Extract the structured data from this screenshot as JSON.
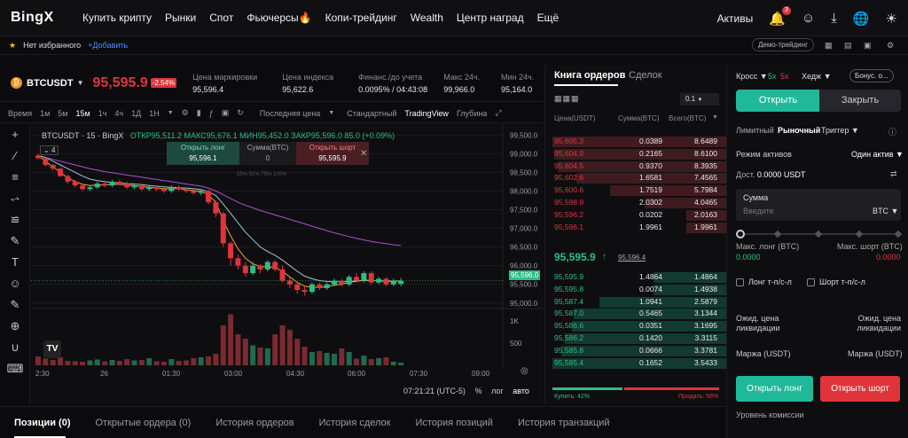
{
  "nav": {
    "logo": "BingX",
    "links": [
      "Купить крипту",
      "Рынки",
      "Спот",
      "Фьючерсы🔥",
      "Копи-трейдинг",
      "Wealth",
      "Центр наград",
      "Ещё"
    ],
    "assets": "Активы",
    "notif_count": "3"
  },
  "fav": {
    "none": "Нет избранного",
    "add": "+Добавить",
    "demo": "Демо-трейдинг"
  },
  "ticker": {
    "symbol": "BTCUSDT",
    "price": "95,595.9",
    "change": "-2.54%",
    "stats": [
      {
        "label": "Цена маркировки",
        "value": "95,596.4"
      },
      {
        "label": "Цена индекса",
        "value": "95,622.6"
      },
      {
        "label": "Финанс./до учета",
        "value": "0.0095% / 04:43:08"
      },
      {
        "label": "Макс 24ч.",
        "value": "99,966.0"
      },
      {
        "label": "Мин 24ч.",
        "value": "95,164.0"
      }
    ]
  },
  "toolbar": {
    "time": "Время",
    "intervals": [
      "1м",
      "5м",
      "15м",
      "1ч",
      "4ч",
      "1Д",
      "1Н"
    ],
    "active": "15м",
    "last_price": "Последняя цена",
    "standard": "Стандартный",
    "tradingview": "TradingView",
    "depth": "Глубина"
  },
  "chart": {
    "legend": "BTCUSDT · 15 · BingX",
    "ohlc": "ОТКР95,511.2 МАКС95,676.1 МИН95,452.0 ЗАКР95,596.0 85.0 (+0.09%)",
    "open_long": "Открыть лонг",
    "open_short": "Открыть шорт",
    "long_price": "95,596.1",
    "short_price": "95,595.9",
    "size_label": "Сумма(BTC)",
    "size_val": "0",
    "pct": "25% 50% 75% 100%",
    "indicator_count": "4",
    "price_ticks": [
      "99,500.0",
      "99,000.0",
      "98,500.0",
      "98,000.0",
      "97,500.0",
      "97,000.0",
      "96,500.0",
      "96,000.0",
      "95,500.0",
      "95,000.0"
    ],
    "vol_ticks": [
      "1K",
      "500"
    ],
    "time_ticks": [
      "2:30",
      "26",
      "01:30",
      "03:00",
      "04:30",
      "06:00",
      "07:30",
      "09:00"
    ],
    "current_price": "95,596.0",
    "clock": "07:21:21 (UTC-5)",
    "pct_btn": "%",
    "log": "лог",
    "auto": "авто"
  },
  "chart_data": {
    "type": "candlestick",
    "interval": "15м",
    "ylim": [
      94900,
      99650
    ],
    "candles": [
      [
        98950,
        98880,
        99000,
        98850
      ],
      [
        98880,
        98700,
        98920,
        98650
      ],
      [
        98700,
        98600,
        98720,
        98550
      ],
      [
        98600,
        98400,
        98640,
        98380
      ],
      [
        98400,
        98250,
        98450,
        98200
      ],
      [
        98250,
        98150,
        98300,
        98100
      ],
      [
        98150,
        98050,
        98200,
        98000
      ],
      [
        98050,
        98100,
        98150,
        98000
      ],
      [
        98100,
        98200,
        98250,
        98050
      ],
      [
        98200,
        98150,
        98250,
        98100
      ],
      [
        98150,
        98250,
        98300,
        98100
      ],
      [
        98250,
        98200,
        98300,
        98150
      ],
      [
        98200,
        98100,
        98250,
        98050
      ],
      [
        98100,
        98150,
        98200,
        98050
      ],
      [
        98150,
        98050,
        98200,
        98000
      ],
      [
        98050,
        98100,
        98150,
        98000
      ],
      [
        98100,
        98050,
        98150,
        98000
      ],
      [
        98050,
        98000,
        98100,
        97950
      ],
      [
        98000,
        98100,
        98150,
        97950
      ],
      [
        98100,
        98050,
        98150,
        98000
      ],
      [
        98050,
        98000,
        98100,
        97950
      ],
      [
        98000,
        97950,
        98050,
        97900
      ],
      [
        97950,
        98000,
        98050,
        97900
      ],
      [
        98000,
        97700,
        98050,
        97650
      ],
      [
        97700,
        97400,
        97750,
        97300
      ],
      [
        97400,
        96600,
        97450,
        96500
      ],
      [
        96600,
        96200,
        96650,
        96000
      ],
      [
        96200,
        96000,
        96300,
        95900
      ],
      [
        96000,
        95800,
        96100,
        95700
      ],
      [
        95800,
        96000,
        96100,
        95750
      ],
      [
        96000,
        95900,
        96050,
        95800
      ],
      [
        95900,
        96100,
        96150,
        95850
      ],
      [
        96100,
        95900,
        96150,
        95850
      ],
      [
        95900,
        95600,
        96000,
        95550
      ],
      [
        95600,
        95500,
        95700,
        95400
      ],
      [
        95500,
        95350,
        95550,
        95250
      ],
      [
        95350,
        95300,
        95450,
        95200
      ],
      [
        95300,
        95500,
        95550,
        95250
      ],
      [
        95500,
        95400,
        95550,
        95350
      ],
      [
        95400,
        95500,
        95550,
        95350
      ],
      [
        95500,
        95600,
        95650,
        95450
      ],
      [
        95600,
        95500,
        95650,
        95450
      ],
      [
        95500,
        95700,
        95750,
        95450
      ],
      [
        95700,
        95600,
        95800,
        95550
      ],
      [
        95600,
        95800,
        95850,
        95550
      ],
      [
        95800,
        95550,
        95850,
        95500
      ],
      [
        95550,
        95650,
        95700,
        95500
      ],
      [
        95650,
        95500,
        95700,
        95450
      ],
      [
        95500,
        95600,
        95650,
        95450
      ],
      [
        95511.2,
        95596,
        95676.1,
        95452
      ]
    ],
    "volumes": [
      200,
      150,
      120,
      180,
      100,
      90,
      80,
      110,
      130,
      90,
      120,
      100,
      140,
      110,
      120,
      160,
      90,
      80,
      140,
      100,
      110,
      160,
      180,
      200,
      260,
      900,
      1150,
      700,
      600,
      450,
      400,
      380,
      700,
      900,
      800,
      600,
      420,
      300,
      320,
      280,
      260,
      380,
      300,
      150,
      220,
      140,
      160,
      180,
      80,
      60
    ],
    "ma_fast": [
      98950,
      98800,
      98650,
      98500,
      98350,
      98250,
      98180,
      98150,
      98160,
      98160,
      98180,
      98180,
      98160,
      98150,
      98120,
      98100,
      98080,
      98060,
      98060,
      98060,
      98040,
      98010,
      98000,
      97900,
      97700,
      97200,
      96800,
      96450,
      96200,
      96050,
      95980,
      95970,
      95950,
      95850,
      95700,
      95550,
      95450,
      95420,
      95420,
      95440,
      95480,
      95500,
      95560,
      95580,
      95620,
      95600,
      95600,
      95580,
      95580,
      95590
    ],
    "ma_mid": [
      98950,
      98900,
      98800,
      98700,
      98600,
      98500,
      98400,
      98320,
      98280,
      98250,
      98230,
      98220,
      98200,
      98190,
      98170,
      98150,
      98130,
      98110,
      98100,
      98090,
      98080,
      98060,
      98040,
      97980,
      97880,
      97650,
      97400,
      97150,
      96900,
      96700,
      96500,
      96380,
      96280,
      96150,
      96000,
      95850,
      95720,
      95650,
      95600,
      95580,
      95570,
      95570,
      95580,
      95590,
      95600,
      95600,
      95600,
      95590,
      95590,
      95590
    ],
    "ma_slow": [
      98950,
      98900,
      98850,
      98800,
      98750,
      98700,
      98650,
      98600,
      98560,
      98520,
      98490,
      98460,
      98430,
      98400,
      98370,
      98340,
      98310,
      98280,
      98250,
      98220,
      98190,
      98160,
      98130,
      98080,
      98000,
      97900,
      97800,
      97700,
      97620,
      97550,
      97480,
      97420,
      97360,
      97300,
      97240,
      97180,
      97120,
      97060,
      97000,
      96940,
      96880,
      96830,
      96780,
      96730,
      96690,
      96650,
      96620,
      96590,
      96560,
      96540
    ]
  },
  "orderbook": {
    "tab_book": "Книга ордеров",
    "tab_trades": "Сделок",
    "precision": "0.1",
    "col_price": "Цена(USDT)",
    "col_size": "Сумма(BTC)",
    "col_total": "Всего(BTC)",
    "asks": [
      [
        "95,605.3",
        "0.0389",
        "8.6489"
      ],
      [
        "95,604.9",
        "0.2165",
        "8.6100"
      ],
      [
        "95,604.5",
        "0.9370",
        "8.3935"
      ],
      [
        "95,602.6",
        "1.6581",
        "7.4565"
      ],
      [
        "95,600.6",
        "1.7519",
        "5.7984"
      ],
      [
        "95,598.9",
        "2.0302",
        "4.0465"
      ],
      [
        "95,596.2",
        "0.0202",
        "2.0163"
      ],
      [
        "95,596.1",
        "1.9961",
        "1.9961"
      ]
    ],
    "ask_depth": [
      1.0,
      0.99,
      0.97,
      0.86,
      0.67,
      0.47,
      0.23,
      0.23
    ],
    "mid_price": "95,595.9",
    "mid_mark": "95,596.4",
    "bids": [
      [
        "95,595.9",
        "1.4864",
        "1.4864"
      ],
      [
        "95,595.8",
        "0.0074",
        "1.4938"
      ],
      [
        "95,587.4",
        "1.0941",
        "2.5879"
      ],
      [
        "95,587.0",
        "0.5465",
        "3.1344"
      ],
      [
        "95,586.6",
        "0.0351",
        "3.1695"
      ],
      [
        "95,586.2",
        "0.1420",
        "3.3115"
      ],
      [
        "95,585.8",
        "0.0666",
        "3.3781"
      ],
      [
        "95,585.4",
        "0.1652",
        "3.5433"
      ]
    ],
    "bid_depth": [
      0.42,
      0.42,
      0.73,
      0.88,
      0.89,
      0.93,
      0.95,
      1.0
    ],
    "buy_pct_label": "Купить: 42%",
    "sell_pct_label": "Продать: 58%",
    "buy_pct": 42
  },
  "form": {
    "cross": "Кросс",
    "lev_long": "5x",
    "lev_short": "5x",
    "hedge": "Хедж",
    "bonus": "Бонус. о...",
    "open": "Открыть",
    "close": "Закрыть",
    "tabs": [
      "Лимитный",
      "Рыночный",
      "Триггер"
    ],
    "mode_label": "Режим активов",
    "mode_val": "Один актив",
    "avail_label": "Дост.",
    "avail_val": "0.0000",
    "avail_unit": "USDT",
    "amount_label": "Сумма",
    "amount_placeholder": "Введите",
    "amount_unit": "BTC",
    "slider_pct": 0,
    "max_long_label": "Макс. лонг (BTC)",
    "max_long_val": "0.0000",
    "max_short_label": "Макс. шорт (BTC)",
    "max_short_val": "0.0000",
    "tpsl_long": "Лонг т-п/с-л",
    "tpsl_short": "Шорт т-п/с-л",
    "liq_long": "Ожид. цена ликвидации",
    "liq_short": "Ожид. цена ликвидации",
    "margin_long": "Маржа (USDT)",
    "margin_short": "Маржа (USDT)",
    "btn_long": "Открыть лонг",
    "btn_short": "Открыть шорт",
    "fee": "Уровень комиссии"
  },
  "bottom": {
    "tabs": [
      "Позиции (0)",
      "Открытые ордера (0)",
      "История ордеров",
      "История сделок",
      "История позиций",
      "История транзакций"
    ]
  },
  "colors": {
    "up": "#2ebd85",
    "down": "#e0343b",
    "accent": "#1fb999"
  }
}
